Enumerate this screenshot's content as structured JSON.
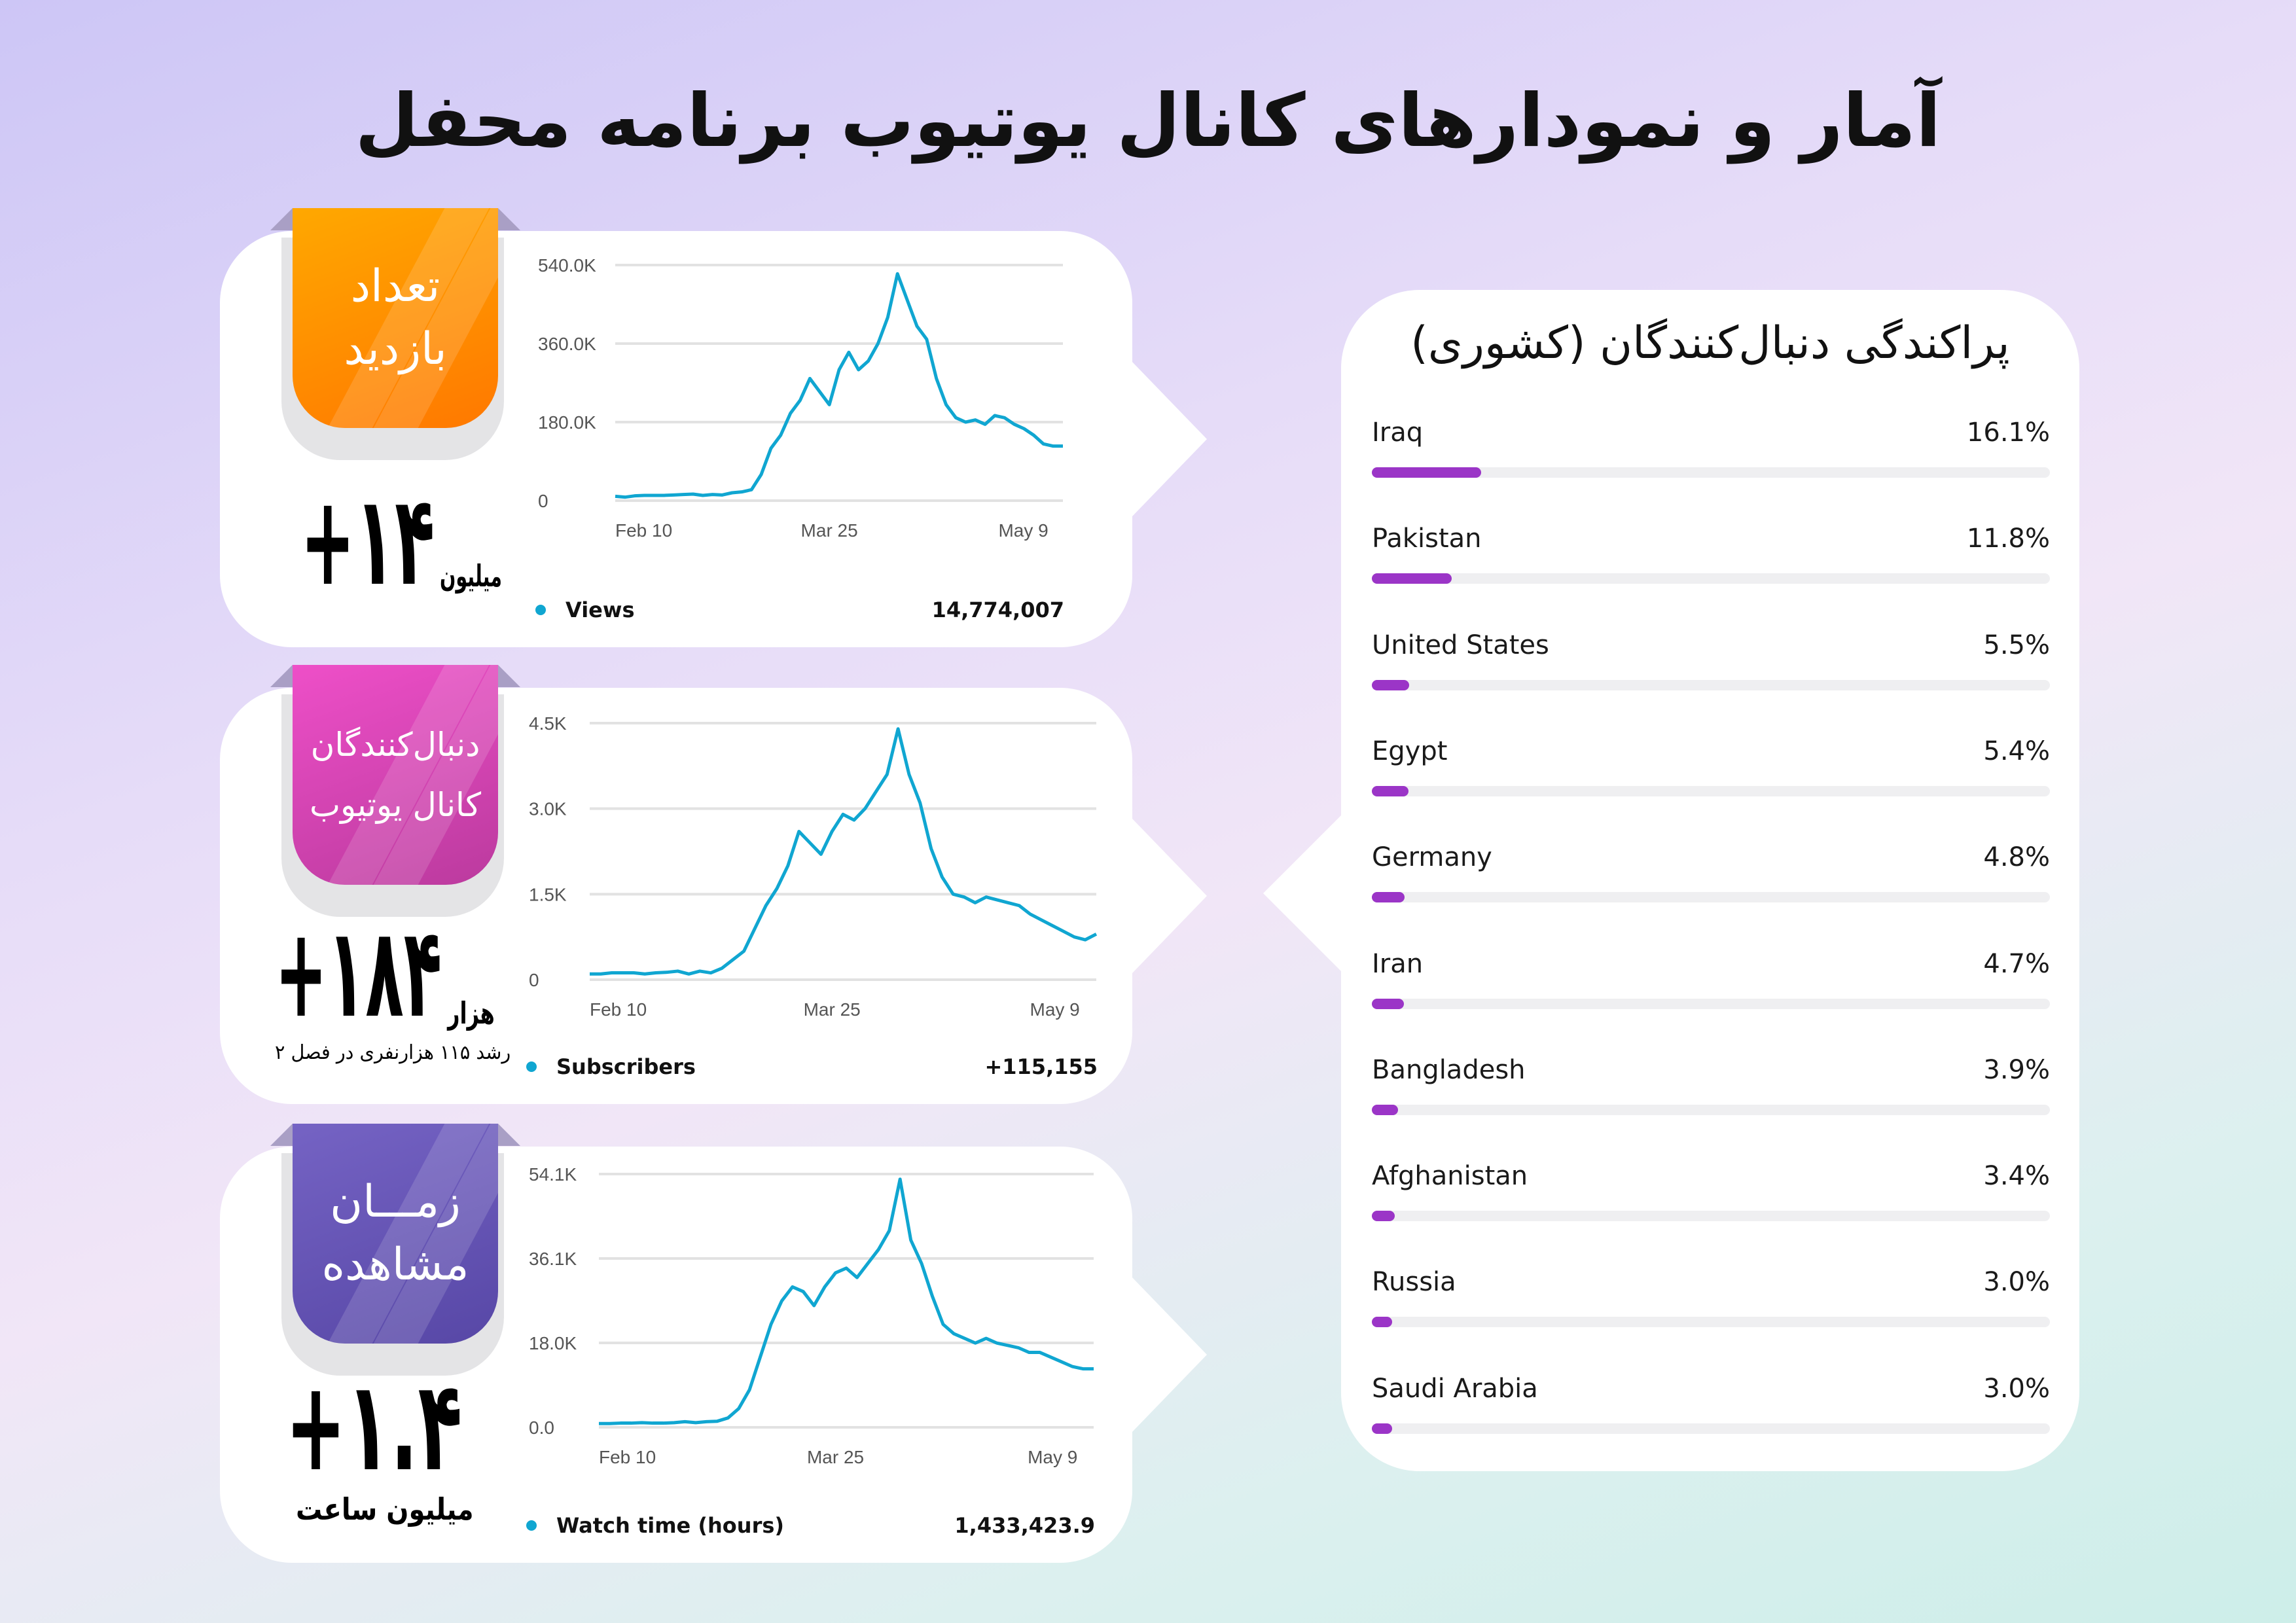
{
  "title": "آمار و نمودارهای کانال یوتیوب برنامه محفل",
  "colors": {
    "line": "#10a6d1",
    "bar": "#9b35c7",
    "orange": "#ff8a00",
    "pink": "#d845b8",
    "purple": "#6150b4"
  },
  "cards": [
    {
      "badge": [
        "تعداد",
        "بازدید"
      ],
      "big_number": "+۱۴",
      "big_unit": "میلیون",
      "legend": "Views",
      "total": "14,774,007"
    },
    {
      "badge": [
        "دنبال‌کنندگان",
        "کانال یوتیوب"
      ],
      "big_number": "+۱۸۴",
      "big_unit": "هزار",
      "sub": "رشد ۱۱۵ هزارنفری در فصل ۲",
      "legend": "Subscribers",
      "total": "+115,155"
    },
    {
      "badge": [
        "زمـــان",
        "مشاهده"
      ],
      "big_number": "+۱.۴",
      "big_unit": "میلیون ساعت",
      "legend": "Watch time (hours)",
      "total": "1,433,423.9"
    }
  ],
  "chart_data": [
    {
      "type": "line",
      "series": [
        {
          "name": "Views",
          "values": [
            10,
            8,
            11,
            12,
            12,
            12,
            13,
            14,
            15,
            12,
            14,
            13,
            18,
            20,
            25,
            60,
            120,
            150,
            200,
            230,
            280,
            250,
            220,
            300,
            340,
            300,
            320,
            360,
            420,
            520,
            460,
            400,
            370,
            280,
            220,
            190,
            180,
            185,
            175,
            195,
            190,
            175,
            165,
            150,
            130,
            125,
            125
          ]
        }
      ],
      "x_start": "Feb 10",
      "x_step_days": 2,
      "x_ticks": [
        "Feb 10",
        "Mar 25",
        "May 9"
      ],
      "y_ticks": [
        "0",
        "180.0K",
        "360.0K",
        "540.0K"
      ],
      "y_unit": "K",
      "ylim": [
        0,
        540
      ],
      "grid": true
    },
    {
      "type": "line",
      "series": [
        {
          "name": "Subscribers",
          "values": [
            0.1,
            0.1,
            0.12,
            0.12,
            0.12,
            0.1,
            0.12,
            0.13,
            0.15,
            0.1,
            0.15,
            0.12,
            0.2,
            0.35,
            0.5,
            0.9,
            1.3,
            1.6,
            2.0,
            2.6,
            2.4,
            2.2,
            2.6,
            2.9,
            2.8,
            3.0,
            3.3,
            3.6,
            4.4,
            3.6,
            3.1,
            2.3,
            1.8,
            1.5,
            1.45,
            1.35,
            1.45,
            1.4,
            1.35,
            1.3,
            1.15,
            1.05,
            0.95,
            0.85,
            0.75,
            0.7,
            0.8
          ]
        }
      ],
      "x_start": "Feb 10",
      "x_step_days": 2,
      "x_ticks": [
        "Feb 10",
        "Mar 25",
        "May 9"
      ],
      "y_ticks": [
        "0",
        "1.5K",
        "3.0K",
        "4.5K"
      ],
      "y_unit": "K",
      "ylim": [
        0,
        4.5
      ],
      "grid": true
    },
    {
      "type": "line",
      "series": [
        {
          "name": "Watch time (hours)",
          "values": [
            0.8,
            0.8,
            0.9,
            0.9,
            1,
            0.9,
            0.9,
            1,
            1.2,
            1,
            1.2,
            1.3,
            2,
            4,
            8,
            15,
            22,
            27,
            30,
            29,
            26,
            30,
            33,
            34,
            32,
            35,
            38,
            42,
            53,
            40,
            35,
            28,
            22,
            20,
            19,
            18,
            19,
            18,
            17.5,
            17,
            16,
            16,
            15,
            14,
            13,
            12.5,
            12.5
          ]
        }
      ],
      "x_start": "Feb 10",
      "x_step_days": 2,
      "x_ticks": [
        "Feb 10",
        "Mar 25",
        "May 9"
      ],
      "y_ticks": [
        "0.0",
        "18.0K",
        "36.1K",
        "54.1K"
      ],
      "y_unit": "K",
      "ylim": [
        0,
        54.1
      ],
      "grid": true
    }
  ],
  "countries": {
    "title": "پراکندگی دنبال‌کنندگان (کشوری)",
    "items": [
      {
        "name": "Iraq",
        "pct_label": "16.1%",
        "pct": 16.1
      },
      {
        "name": "Pakistan",
        "pct_label": "11.8%",
        "pct": 11.8
      },
      {
        "name": "United States",
        "pct_label": "5.5%",
        "pct": 5.5
      },
      {
        "name": "Egypt",
        "pct_label": "5.4%",
        "pct": 5.4
      },
      {
        "name": "Germany",
        "pct_label": "4.8%",
        "pct": 4.8
      },
      {
        "name": "Iran",
        "pct_label": "4.7%",
        "pct": 4.7
      },
      {
        "name": "Bangladesh",
        "pct_label": "3.9%",
        "pct": 3.9
      },
      {
        "name": "Afghanistan",
        "pct_label": "3.4%",
        "pct": 3.4
      },
      {
        "name": "Russia",
        "pct_label": "3.0%",
        "pct": 3.0
      },
      {
        "name": "Saudi Arabia",
        "pct_label": "3.0%",
        "pct": 3.0
      }
    ]
  }
}
